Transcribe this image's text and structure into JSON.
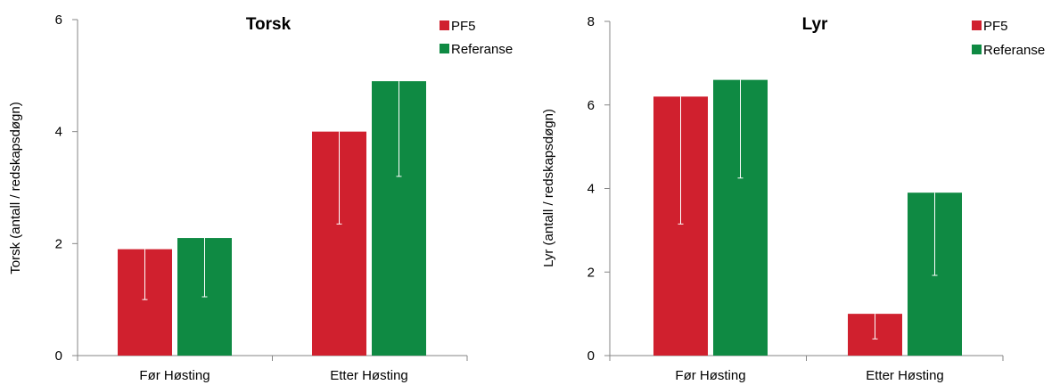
{
  "chart_data": [
    {
      "type": "bar",
      "title": "Torsk",
      "ylabel": "Torsk  (antall / redskapsdøgn)",
      "xlabel": "",
      "ylim": [
        0,
        6
      ],
      "yticks": [
        0,
        2,
        4,
        6
      ],
      "categories": [
        "Før Høsting",
        "Etter Høsting"
      ],
      "series": [
        {
          "name": "PF5",
          "color": "#d0202e",
          "values": [
            1.9,
            4.0
          ],
          "error_low": [
            1.0,
            2.35
          ]
        },
        {
          "name": "Referanse",
          "color": "#0f8a43",
          "values": [
            2.1,
            4.9
          ],
          "error_low": [
            1.05,
            3.2
          ]
        }
      ],
      "legend": "top-right",
      "grid": false
    },
    {
      "type": "bar",
      "title": "Lyr",
      "ylabel": "Lyr  (antall / redskapsdøgn)",
      "xlabel": "",
      "ylim": [
        0,
        8
      ],
      "yticks": [
        0,
        2,
        4,
        6,
        8
      ],
      "categories": [
        "Før Høsting",
        "Etter Høsting"
      ],
      "series": [
        {
          "name": "PF5",
          "color": "#d0202e",
          "values": [
            6.2,
            1.0
          ],
          "error_low": [
            3.15,
            0.4
          ]
        },
        {
          "name": "Referanse",
          "color": "#0f8a43",
          "values": [
            6.6,
            3.9
          ],
          "error_low": [
            4.25,
            1.92
          ]
        }
      ],
      "legend": "top-right",
      "grid": false
    }
  ]
}
